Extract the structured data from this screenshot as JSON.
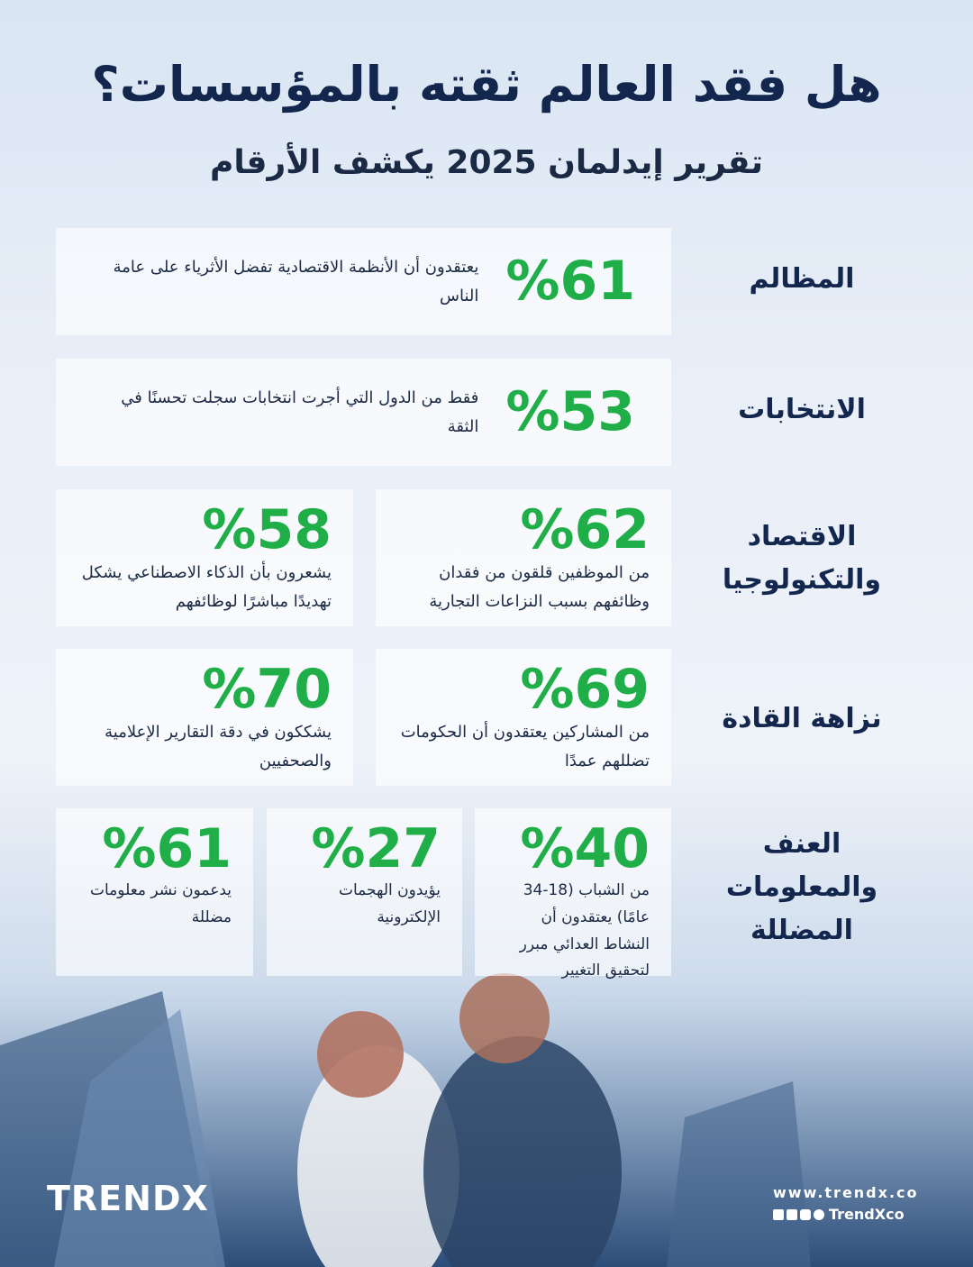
{
  "header": {
    "title": "هل فقد العالم ثقته بالمؤسسات؟",
    "subtitle": "تقرير إيدلمان 2025 يكشف الأرقام"
  },
  "sections": [
    {
      "label": "المظالم",
      "stats": [
        {
          "value": "%61",
          "text": "يعتقدون أن الأنظمة الاقتصادية تفضل الأثرياء على عامة الناس"
        }
      ]
    },
    {
      "label": "الانتخابات",
      "stats": [
        {
          "value": "%53",
          "text": "فقط من الدول التي أجرت انتخابات سجلت تحسنًا في الثقة"
        }
      ]
    },
    {
      "label": "الاقتصاد والتكنولوجيا",
      "stats": [
        {
          "value": "%62",
          "text": "من الموظفين قلقون من فقدان وظائفهم بسبب النزاعات التجارية"
        },
        {
          "value": "%58",
          "text": "يشعرون بأن الذكاء الاصطناعي يشكل تهديدًا مباشرًا لوظائفهم"
        }
      ]
    },
    {
      "label": "نزاهة القادة",
      "stats": [
        {
          "value": "%69",
          "text": "من المشاركين يعتقدون أن الحكومات تضللهم عمدًا"
        },
        {
          "value": "%70",
          "text": "يشككون في دقة التقارير الإعلامية والصحفيين"
        }
      ]
    },
    {
      "label": "العنف والمعلومات المضللة",
      "stats": [
        {
          "value": "%40",
          "text": "من الشباب (18-34 عامًا) يعتقدون أن النشاط العدائي مبرر لتحقيق التغيير"
        },
        {
          "value": "%27",
          "text": "يؤيدون الهجمات الإلكترونية"
        },
        {
          "value": "%61",
          "text": "يدعمون نشر معلومات مضللة"
        }
      ]
    }
  ],
  "footer": {
    "logo": "TRENDX",
    "website": "www.trendx.co",
    "handle": "TrendXco"
  }
}
